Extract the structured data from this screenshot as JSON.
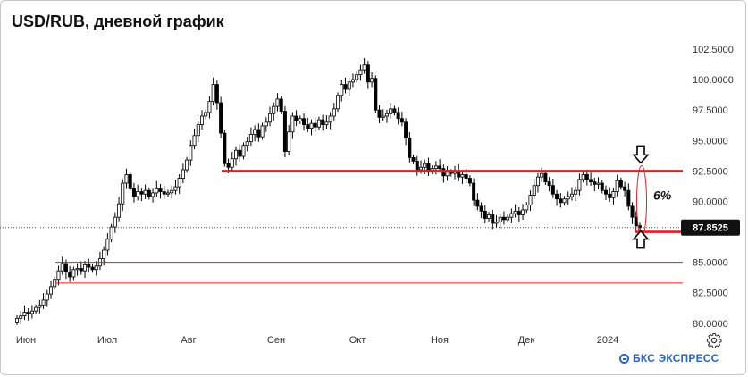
{
  "chart_data": {
    "type": "candlestick",
    "title": "USD/RUB, дневной график",
    "x_tick_labels": [
      "Июн",
      "Июл",
      "Авг",
      "Сен",
      "Окт",
      "Ноя",
      "Дек",
      "2024"
    ],
    "y_ticks": [
      80,
      82.5,
      85,
      87.5,
      90,
      92.5,
      95,
      97.5,
      100,
      102.5
    ],
    "y_tick_labels": [
      "80.0000",
      "82.5000",
      "85.0000",
      "87.5000",
      "90.0000",
      "92.5000",
      "95.0000",
      "97.5000",
      "100.0000",
      "102.5000"
    ],
    "ylim": [
      79.4,
      103.6
    ],
    "last_price": 87.8525,
    "last_price_label": "87.8525",
    "percent_annotation": "6%",
    "horizontal_levels": [
      {
        "value": 92.5,
        "x_start_month": "Авг"
      },
      {
        "value": 87.5,
        "x_start_month": "2024"
      },
      {
        "value": 85.0,
        "x_start_month": "Июн"
      },
      {
        "value": 83.3,
        "x_start_month": "Июн"
      }
    ],
    "close_series": [
      80.4,
      80.6,
      80.9,
      80.8,
      81.0,
      81.3,
      81.5,
      81.9,
      82.4,
      83.0,
      83.6,
      84.3,
      84.9,
      84.2,
      83.8,
      84.4,
      84.5,
      84.3,
      84.8,
      84.6,
      84.4,
      84.7,
      85.3,
      86.0,
      86.9,
      87.9,
      88.7,
      89.8,
      91.5,
      92.2,
      91.1,
      90.4,
      90.8,
      90.6,
      90.9,
      90.4,
      90.7,
      91.1,
      90.8,
      90.6,
      90.7,
      90.9,
      91.2,
      91.9,
      92.6,
      93.4,
      94.6,
      95.4,
      96.3,
      97.0,
      97.3,
      98.2,
      99.6,
      98.1,
      95.6,
      93.1,
      92.8,
      93.5,
      94.2,
      93.7,
      94.6,
      94.9,
      95.5,
      95.9,
      95.3,
      96.2,
      96.5,
      97.2,
      97.8,
      98.4,
      97.4,
      94.1,
      95.7,
      97.0,
      96.6,
      96.8,
      96.3,
      96.0,
      96.4,
      96.1,
      96.7,
      96.3,
      96.5,
      97.0,
      97.6,
      98.7,
      99.6,
      99.2,
      99.8,
      100.0,
      100.4,
      100.8,
      101.2,
      99.8,
      100.1,
      97.5,
      96.9,
      97.0,
      97.2,
      97.6,
      97.3,
      96.8,
      96.5,
      95.2,
      93.6,
      93.3,
      92.6,
      92.8,
      93.1,
      92.5,
      92.7,
      92.9,
      92.7,
      92.1,
      92.4,
      92.3,
      92.5,
      92.0,
      92.2,
      91.9,
      91.5,
      90.1,
      89.6,
      89.2,
      88.6,
      88.9,
      88.2,
      88.3,
      88.7,
      88.5,
      88.7,
      89.0,
      89.2,
      88.9,
      89.3,
      89.7,
      90.5,
      91.3,
      92.0,
      92.3,
      91.6,
      91.3,
      90.6,
      90.2,
      89.9,
      90.2,
      90.4,
      90.6,
      90.9,
      91.8,
      92.2,
      91.8,
      91.6,
      91.4,
      91.5,
      90.9,
      90.6,
      90.3,
      90.8,
      91.7,
      91.2,
      90.9,
      89.6,
      88.7,
      88.0,
      87.85
    ]
  },
  "controls": {
    "settings_icon": "gear-icon"
  },
  "branding": {
    "text": "БКС ЭКСПРЕСС",
    "icon": "bks-logo-icon",
    "color": "#2b64c7"
  },
  "colors": {
    "up": "#ffffff",
    "down": "#000000",
    "level_line": "#e01e26",
    "last_price_bg": "#111111"
  }
}
